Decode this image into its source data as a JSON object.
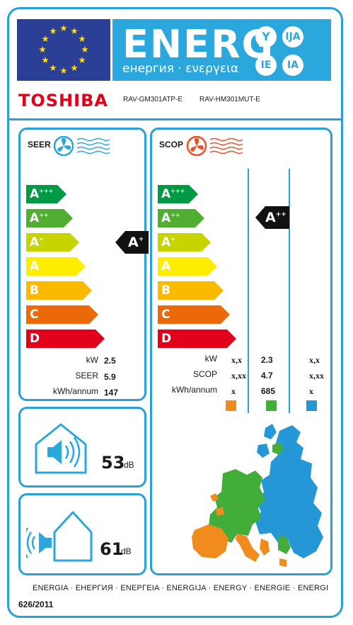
{
  "header": {
    "energy_word": "ENERG",
    "energy_sub": "енергия · ενεργεια",
    "suffixes": [
      "Y",
      "IJA",
      "IE",
      "IA"
    ],
    "brand": "TOSHIBA",
    "model_indoor": "RAV-GM301ATP-E",
    "model_outdoor": "RAV-HM301MUT-E"
  },
  "cooling": {
    "title": "SEER",
    "classes": [
      "A+++",
      "A++",
      "A+",
      "A",
      "B",
      "C",
      "D"
    ],
    "rating": "A+",
    "rows": [
      {
        "label": "kW",
        "value": "2.5"
      },
      {
        "label": "SEER",
        "value": "5.9"
      },
      {
        "label": "kWh/annum",
        "value": "147"
      }
    ]
  },
  "heating": {
    "title": "SCOP",
    "classes": [
      "A+++",
      "A++",
      "A+",
      "A",
      "B",
      "C",
      "D"
    ],
    "rating": "A++",
    "rows": [
      {
        "label": "kW",
        "colder": "x,x",
        "average": "2.3",
        "warmer": "x,x"
      },
      {
        "label": "SCOP",
        "colder": "x,xx",
        "average": "4.7",
        "warmer": "x,xx"
      },
      {
        "label": "kWh/annum",
        "colder": "x",
        "average": "685",
        "warmer": "x"
      }
    ],
    "zone_colors": {
      "colder": "#f08c1e",
      "average": "#43ad3a",
      "warmer": "#2596d6"
    }
  },
  "noise": {
    "indoor_value": "53",
    "outdoor_value": "61",
    "unit": "dB"
  },
  "footer": {
    "languages": "ENERGIA · ЕНЕРГИЯ · ΕΝΕΡΓΕΙΑ · ENERGIJA · ENERGY · ENERGIE · ENERGI",
    "regulation": "626/2011"
  },
  "colors": {
    "frame": "#2a9fd8",
    "eu_blue": "#2b3f97",
    "eu_star": "#ffdd00",
    "brand_red": "#e2001a",
    "class_colors": [
      "#009a44",
      "#52ae32",
      "#c8d400",
      "#ffed00",
      "#fbba00",
      "#eb6909",
      "#e2001a"
    ]
  },
  "icons": [
    "fan-blue-icon",
    "fan-red-icon",
    "cold-waves-icon",
    "heat-waves-icon",
    "speaker-icon",
    "house-icon",
    "europe-map-icon"
  ]
}
